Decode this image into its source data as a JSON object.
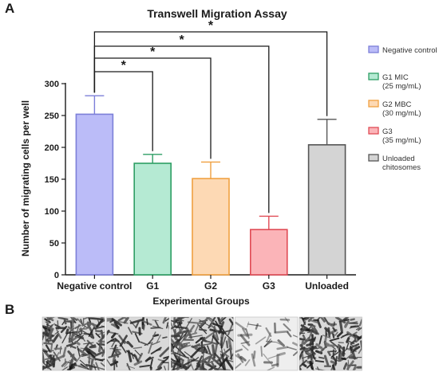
{
  "panels": {
    "a_label": "A",
    "b_label": "B"
  },
  "chart_data": {
    "type": "bar",
    "title": "Transwell Migration Assay",
    "xlabel": "Experimental Groups",
    "ylabel": "Number of migrating cells per well",
    "ylim": [
      0,
      300
    ],
    "yticks": [
      "0",
      "50",
      "100",
      "150",
      "200",
      "250",
      "300"
    ],
    "categories": [
      "Negative control",
      "G1",
      "G2",
      "G3",
      "Unloaded"
    ],
    "values": [
      252,
      175,
      151,
      71,
      204
    ],
    "errors": [
      29,
      14,
      26,
      21,
      40
    ],
    "grid": false,
    "legend_position": "right",
    "colors": {
      "fills": [
        "#bbbcf8",
        "#b5ead3",
        "#fdd9b4",
        "#fbb4b8",
        "#d4d4d4"
      ],
      "strokes": [
        "#7c7fd8",
        "#2e9e64",
        "#f0a040",
        "#e04b55",
        "#555555"
      ]
    },
    "legend": [
      "Negative control",
      "G1 MIC\n(25 mg/mL)",
      "G2 MBC\n(30 mg/mL)",
      "G3\n(35 mg/mL)",
      "Unloaded\nchitosomes"
    ],
    "significance": [
      {
        "from": "Negative control",
        "to": "G1",
        "label": "*"
      },
      {
        "from": "Negative control",
        "to": "G2",
        "label": "*"
      },
      {
        "from": "Negative control",
        "to": "G3",
        "label": "*"
      },
      {
        "from": "Negative control",
        "to": "Unloaded",
        "label": "*"
      }
    ]
  },
  "micrographs": {
    "count": 5,
    "tones": [
      "dense-spindle",
      "sparse-spindle",
      "dense-elongated",
      "sparse-faint",
      "dense-mixed"
    ]
  }
}
